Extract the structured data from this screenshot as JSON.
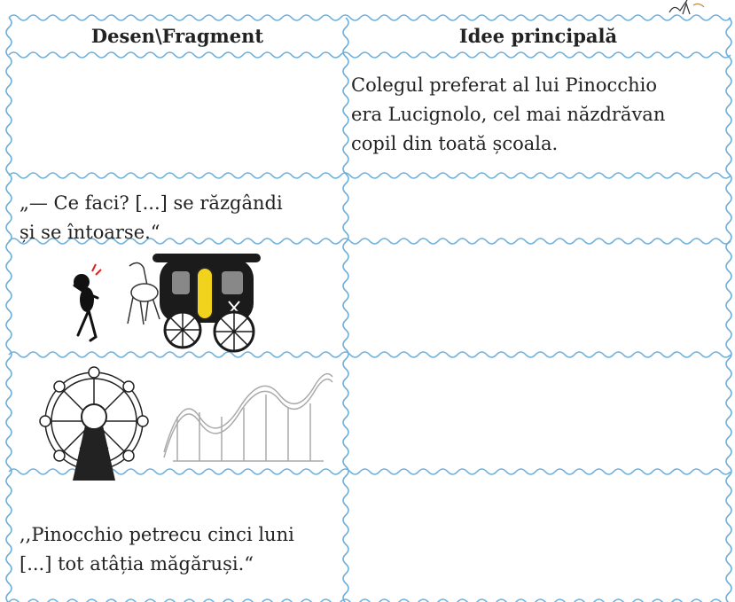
{
  "table": {
    "headers": [
      "Desen\\Fragment",
      "Idee principală"
    ],
    "rows": [
      {
        "idea": [
          "Colegul preferat al lui Pinocchio",
          "era Lucignolo, cel mai năzdrăvan",
          "copil din toată școala."
        ]
      },
      {
        "fragment": [
          "„— Ce faci? [...] se răzgândi",
          "și se întoarse.“"
        ]
      },
      {},
      {},
      {
        "fragment": [
          ",,Pinocchio petrecu cinci luni",
          "[...] tot atâția măgăruși.“"
        ]
      }
    ]
  }
}
